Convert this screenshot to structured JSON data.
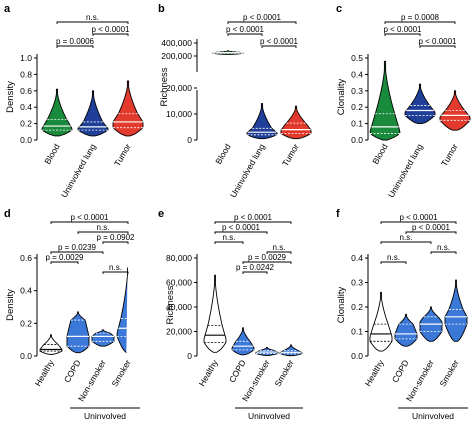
{
  "chart_data": [
    {
      "letter": "a",
      "type": "violin",
      "ylabel": "Density",
      "ylim": [
        0,
        1.0
      ],
      "yticks": [
        0.0,
        0.2,
        0.4,
        0.6,
        0.8,
        1.0
      ],
      "categories": [
        "Blood",
        "Uninvolved lung",
        "Tumor"
      ],
      "colors": [
        "#1a8a3c",
        "#1f3f99",
        "#e23b2e"
      ],
      "series": [
        {
          "min": 0.05,
          "q1": 0.12,
          "median": 0.17,
          "q3": 0.25,
          "max": 0.62,
          "mode": 0.14
        },
        {
          "min": 0.05,
          "q1": 0.12,
          "median": 0.16,
          "q3": 0.22,
          "max": 0.6,
          "mode": 0.14
        },
        {
          "min": 0.05,
          "q1": 0.15,
          "median": 0.22,
          "q3": 0.32,
          "max": 0.72,
          "mode": 0.22
        }
      ],
      "brackets": [
        {
          "from": 0,
          "to": 2,
          "text": "n.s."
        },
        {
          "from": 1,
          "to": 2,
          "text": "p < 0.0001"
        },
        {
          "from": 0,
          "to": 1,
          "text": "p = 0.0006"
        }
      ]
    },
    {
      "letter": "b",
      "type": "violin",
      "ylabel": "Richness",
      "ylim": [
        0,
        400000
      ],
      "broken_axis": true,
      "yticks_lower": [
        "0",
        "10,000",
        "20,000"
      ],
      "yticks_upper": [
        "200,000",
        "400,000"
      ],
      "categories": [
        "Blood",
        "Uninvolved lung",
        "Tumor"
      ],
      "colors": [
        "#1a8a3c",
        "#1f3f99",
        "#e23b2e"
      ],
      "series": [
        {
          "min": 225000,
          "q1": 240000,
          "median": 250000,
          "q3": 260000,
          "max": 280000,
          "mode": 250000
        },
        {
          "min": 500,
          "q1": 2000,
          "median": 3000,
          "q3": 4500,
          "max": 14000,
          "mode": 2800
        },
        {
          "min": 500,
          "q1": 2500,
          "median": 4000,
          "q3": 6500,
          "max": 13000,
          "mode": 3800
        }
      ],
      "brackets": [
        {
          "from": 0,
          "to": 2,
          "text": "p < 0.0001"
        },
        {
          "from": 0,
          "to": 1,
          "text": "p < 0.0001"
        },
        {
          "from": 1,
          "to": 2,
          "text": "p < 0.0001"
        }
      ]
    },
    {
      "letter": "c",
      "type": "violin",
      "ylabel": "Clonality",
      "ylim": [
        0,
        0.5
      ],
      "yticks": [
        0.0,
        0.1,
        0.2,
        0.3,
        0.4,
        0.5
      ],
      "categories": [
        "Blood",
        "Uninvolved lung",
        "Tumor"
      ],
      "colors": [
        "#1a8a3c",
        "#1f3f99",
        "#e23b2e"
      ],
      "series": [
        {
          "min": 0.0,
          "q1": 0.04,
          "median": 0.08,
          "q3": 0.16,
          "max": 0.48,
          "mode": 0.05
        },
        {
          "min": 0.1,
          "q1": 0.15,
          "median": 0.18,
          "q3": 0.21,
          "max": 0.34,
          "mode": 0.17
        },
        {
          "min": 0.06,
          "q1": 0.12,
          "median": 0.15,
          "q3": 0.18,
          "max": 0.3,
          "mode": 0.14
        }
      ],
      "brackets": [
        {
          "from": 0,
          "to": 2,
          "text": "p = 0.0008"
        },
        {
          "from": 0,
          "to": 1,
          "text": "p < 0.0001"
        },
        {
          "from": 1,
          "to": 2,
          "text": "p < 0.0001"
        }
      ]
    },
    {
      "letter": "d",
      "type": "violin",
      "ylabel": "Density",
      "ylim": [
        0,
        0.6
      ],
      "yticks": [
        0.0,
        0.2,
        0.4,
        0.6
      ],
      "categories": [
        "Healthy",
        "COPD",
        "Non-smoker",
        "Smoker"
      ],
      "colors": [
        "#ffffff",
        "#3b78d8",
        "#3b78d8",
        "#3b78d8"
      ],
      "group_label": "Uninvolved",
      "group_from": 1,
      "group_to": 3,
      "series": [
        {
          "min": 0.01,
          "q1": 0.03,
          "median": 0.04,
          "q3": 0.07,
          "max": 0.13,
          "mode": 0.04
        },
        {
          "min": 0.02,
          "q1": 0.06,
          "median": 0.12,
          "q3": 0.22,
          "max": 0.27,
          "mode": 0.12
        },
        {
          "min": 0.06,
          "q1": 0.09,
          "median": 0.12,
          "q3": 0.14,
          "max": 0.16,
          "mode": 0.12
        },
        {
          "min": 0.02,
          "q1": 0.12,
          "median": 0.17,
          "q3": 0.23,
          "max": 0.56,
          "mode": 0.14
        }
      ],
      "brackets": [
        {
          "from": 0,
          "to": 3,
          "text": "p < 0.0001"
        },
        {
          "from": 1,
          "to": 3,
          "text": "n.s."
        },
        {
          "from": 2,
          "to": 3,
          "text": "p = 0.0902"
        },
        {
          "from": 0,
          "to": 2,
          "text": "p = 0.0239"
        },
        {
          "from": 0,
          "to": 1,
          "text": "p = 0.0029"
        },
        {
          "from": 2,
          "to": 3,
          "text": "n.s."
        }
      ]
    },
    {
      "letter": "e",
      "type": "violin",
      "ylabel": "Richness",
      "ylim": [
        0,
        80000
      ],
      "yticks": [
        0,
        20000,
        40000,
        60000,
        80000
      ],
      "yticklabels": [
        "0",
        "20,000",
        "40,000",
        "60,000",
        "80,000"
      ],
      "categories": [
        "Healthy",
        "COPD",
        "Non-smoker",
        "Smoker"
      ],
      "colors": [
        "#ffffff",
        "#3b78d8",
        "#3b78d8",
        "#3b78d8"
      ],
      "group_label": "Uninvolved",
      "group_from": 1,
      "group_to": 3,
      "series": [
        {
          "min": 3000,
          "q1": 11000,
          "median": 17000,
          "q3": 25000,
          "max": 66000,
          "mode": 14000
        },
        {
          "min": 1000,
          "q1": 5000,
          "median": 8000,
          "q3": 12000,
          "max": 23000,
          "mode": 6500
        },
        {
          "min": 500,
          "q1": 2000,
          "median": 3200,
          "q3": 4500,
          "max": 7000,
          "mode": 3000
        },
        {
          "min": 300,
          "q1": 1800,
          "median": 3000,
          "q3": 4500,
          "max": 9000,
          "mode": 2800
        }
      ],
      "brackets": [
        {
          "from": 0,
          "to": 3,
          "text": "p < 0.0001"
        },
        {
          "from": 0,
          "to": 2,
          "text": "p < 0.0001"
        },
        {
          "from": 0,
          "to": 1,
          "text": "n.s."
        },
        {
          "from": 2,
          "to": 3,
          "text": "n.s."
        },
        {
          "from": 1,
          "to": 3,
          "text": "p = 0.0029"
        },
        {
          "from": 1,
          "to": 2,
          "text": "p = 0.0242"
        }
      ]
    },
    {
      "letter": "f",
      "type": "violin",
      "ylabel": "Clonality",
      "ylim": [
        0,
        0.4
      ],
      "yticks": [
        0.0,
        0.1,
        0.2,
        0.3,
        0.4
      ],
      "categories": [
        "Healthy",
        "COPD",
        "Non-smoker",
        "Smoker"
      ],
      "colors": [
        "#ffffff",
        "#3b78d8",
        "#3b78d8",
        "#3b78d8"
      ],
      "group_label": "Uninvolved",
      "group_from": 1,
      "group_to": 3,
      "series": [
        {
          "min": 0.02,
          "q1": 0.06,
          "median": 0.09,
          "q3": 0.13,
          "max": 0.26,
          "mode": 0.08
        },
        {
          "min": 0.04,
          "q1": 0.07,
          "median": 0.09,
          "q3": 0.13,
          "max": 0.17,
          "mode": 0.09
        },
        {
          "min": 0.06,
          "q1": 0.1,
          "median": 0.13,
          "q3": 0.16,
          "max": 0.2,
          "mode": 0.14
        },
        {
          "min": 0.06,
          "q1": 0.13,
          "median": 0.16,
          "q3": 0.19,
          "max": 0.31,
          "mode": 0.16
        }
      ],
      "brackets": [
        {
          "from": 0,
          "to": 3,
          "text": "p < 0.0001"
        },
        {
          "from": 1,
          "to": 3,
          "text": "p < 0.0001"
        },
        {
          "from": 0,
          "to": 2,
          "text": "n.s."
        },
        {
          "from": 2,
          "to": 3,
          "text": "n.s."
        },
        {
          "from": 0,
          "to": 1,
          "text": "n.s."
        }
      ]
    }
  ]
}
